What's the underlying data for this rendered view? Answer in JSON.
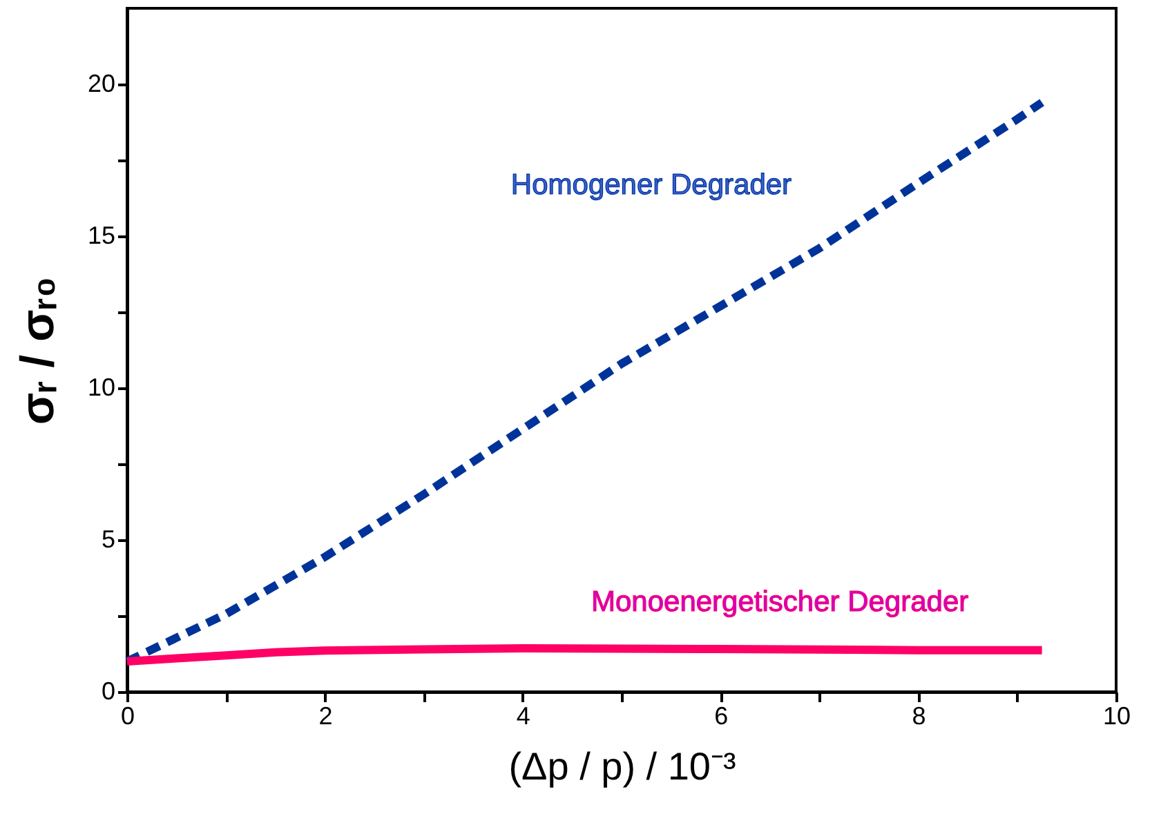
{
  "chart_data": {
    "type": "line",
    "xlabel": "(Δp / p)  / 10⁻³",
    "ylabel": "σᵣ / σᵣ₀",
    "xlim": [
      0,
      10
    ],
    "ylim": [
      0,
      22.5
    ],
    "xticks": [
      0,
      {
        "value": 1,
        "label": null
      },
      2,
      {
        "value": 3,
        "label": null
      },
      4,
      {
        "value": 5,
        "label": null
      },
      6,
      {
        "value": 7,
        "label": null
      },
      8,
      {
        "value": 9,
        "label": null
      },
      10
    ],
    "yticks": [
      0,
      {
        "value": 2.5,
        "label": null
      },
      5,
      {
        "value": 7.5,
        "label": null
      },
      10,
      {
        "value": 12.5,
        "label": null
      },
      15,
      {
        "value": 17.5,
        "label": null
      },
      20
    ],
    "grid": false,
    "series": [
      {
        "name": "Homogener Degrader",
        "color": "#003399",
        "line_style": "dashed",
        "x": [
          0,
          1,
          2,
          3,
          4,
          5,
          6,
          7,
          8,
          9,
          9.25
        ],
        "values": [
          1.0,
          2.56,
          4.44,
          6.5,
          8.65,
          10.8,
          12.7,
          14.6,
          16.75,
          18.85,
          19.4
        ]
      },
      {
        "name": "Monoenergetischer Degrader",
        "color": "#ff0066",
        "line_style": "solid",
        "x": [
          0,
          0.5,
          1,
          1.5,
          2,
          3,
          4,
          5,
          6,
          7,
          8,
          9.25
        ],
        "values": [
          1.0,
          1.1,
          1.2,
          1.3,
          1.36,
          1.4,
          1.43,
          1.42,
          1.41,
          1.39,
          1.37,
          1.37
        ]
      }
    ]
  }
}
